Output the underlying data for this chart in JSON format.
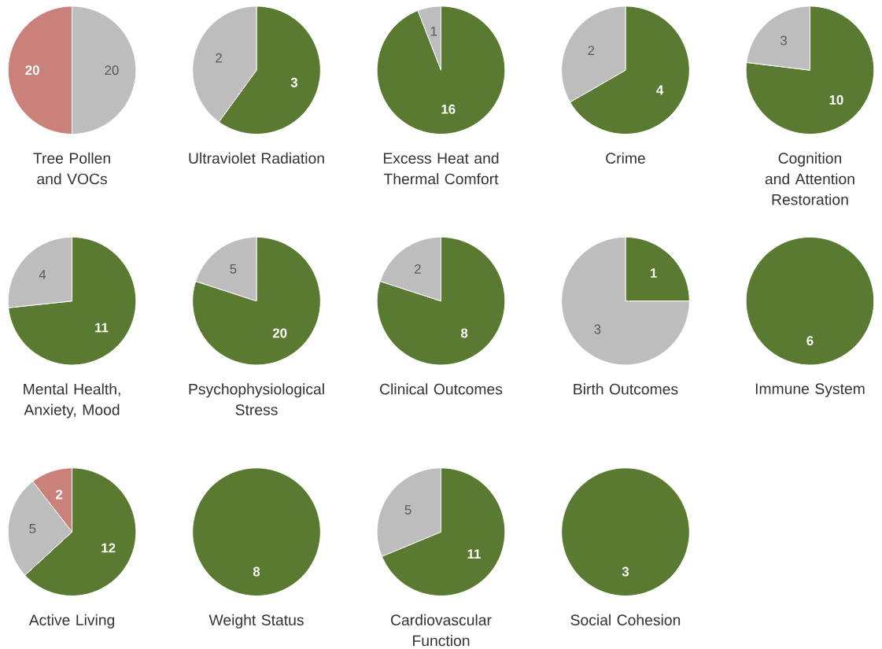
{
  "chart_data": [
    {
      "type": "pie",
      "title": "Tree Pollen and VOCs",
      "categories": [
        null,
        null
      ],
      "values": [
        20,
        20
      ],
      "colors": [
        "#bdbdbd",
        "#c9817a"
      ],
      "data_labels": true
    },
    {
      "type": "pie",
      "title": "Ultraviolet Radiation",
      "categories": [
        null,
        null
      ],
      "values": [
        3,
        2
      ],
      "colors": [
        "#5a7a32",
        "#bdbdbd"
      ],
      "data_labels": true
    },
    {
      "type": "pie",
      "title": "Excess Heat and Thermal Comfort",
      "categories": [
        null,
        null
      ],
      "values": [
        16,
        1
      ],
      "colors": [
        "#5a7a32",
        "#bdbdbd"
      ],
      "data_labels": true
    },
    {
      "type": "pie",
      "title": "Crime",
      "categories": [
        null,
        null
      ],
      "values": [
        4,
        2
      ],
      "colors": [
        "#5a7a32",
        "#bdbdbd"
      ],
      "data_labels": true
    },
    {
      "type": "pie",
      "title": "Cognition and Attention Restoration",
      "categories": [
        null,
        null
      ],
      "values": [
        10,
        3
      ],
      "colors": [
        "#5a7a32",
        "#bdbdbd"
      ],
      "data_labels": true
    },
    {
      "type": "pie",
      "title": "Mental Health, Anxiety, Mood",
      "categories": [
        null,
        null
      ],
      "values": [
        11,
        4
      ],
      "colors": [
        "#5a7a32",
        "#bdbdbd"
      ],
      "data_labels": true
    },
    {
      "type": "pie",
      "title": "Psychophysiological Stress",
      "categories": [
        null,
        null
      ],
      "values": [
        20,
        5
      ],
      "colors": [
        "#5a7a32",
        "#bdbdbd"
      ],
      "data_labels": true
    },
    {
      "type": "pie",
      "title": "Clinical Outcomes",
      "categories": [
        null,
        null
      ],
      "values": [
        8,
        2
      ],
      "colors": [
        "#5a7a32",
        "#bdbdbd"
      ],
      "data_labels": true
    },
    {
      "type": "pie",
      "title": "Birth Outcomes",
      "categories": [
        null,
        null
      ],
      "values": [
        1,
        3
      ],
      "colors": [
        "#5a7a32",
        "#bdbdbd"
      ],
      "data_labels": true
    },
    {
      "type": "pie",
      "title": "Immune System",
      "categories": [
        null
      ],
      "values": [
        6
      ],
      "colors": [
        "#5a7a32"
      ],
      "data_labels": true
    },
    {
      "type": "pie",
      "title": "Active Living",
      "categories": [
        null,
        null,
        null
      ],
      "values": [
        12,
        5,
        2
      ],
      "colors": [
        "#5a7a32",
        "#bdbdbd",
        "#c9817a"
      ],
      "data_labels": true
    },
    {
      "type": "pie",
      "title": "Weight Status",
      "categories": [
        null
      ],
      "values": [
        8
      ],
      "colors": [
        "#5a7a32"
      ],
      "data_labels": true
    },
    {
      "type": "pie",
      "title": "Cardiovascular Function",
      "categories": [
        null,
        null
      ],
      "values": [
        11,
        5
      ],
      "colors": [
        "#5a7a32",
        "#bdbdbd"
      ],
      "data_labels": true
    },
    {
      "type": "pie",
      "title": "Social Cohesion",
      "categories": [
        null
      ],
      "values": [
        3
      ],
      "colors": [
        "#5a7a32"
      ],
      "data_labels": true
    }
  ]
}
